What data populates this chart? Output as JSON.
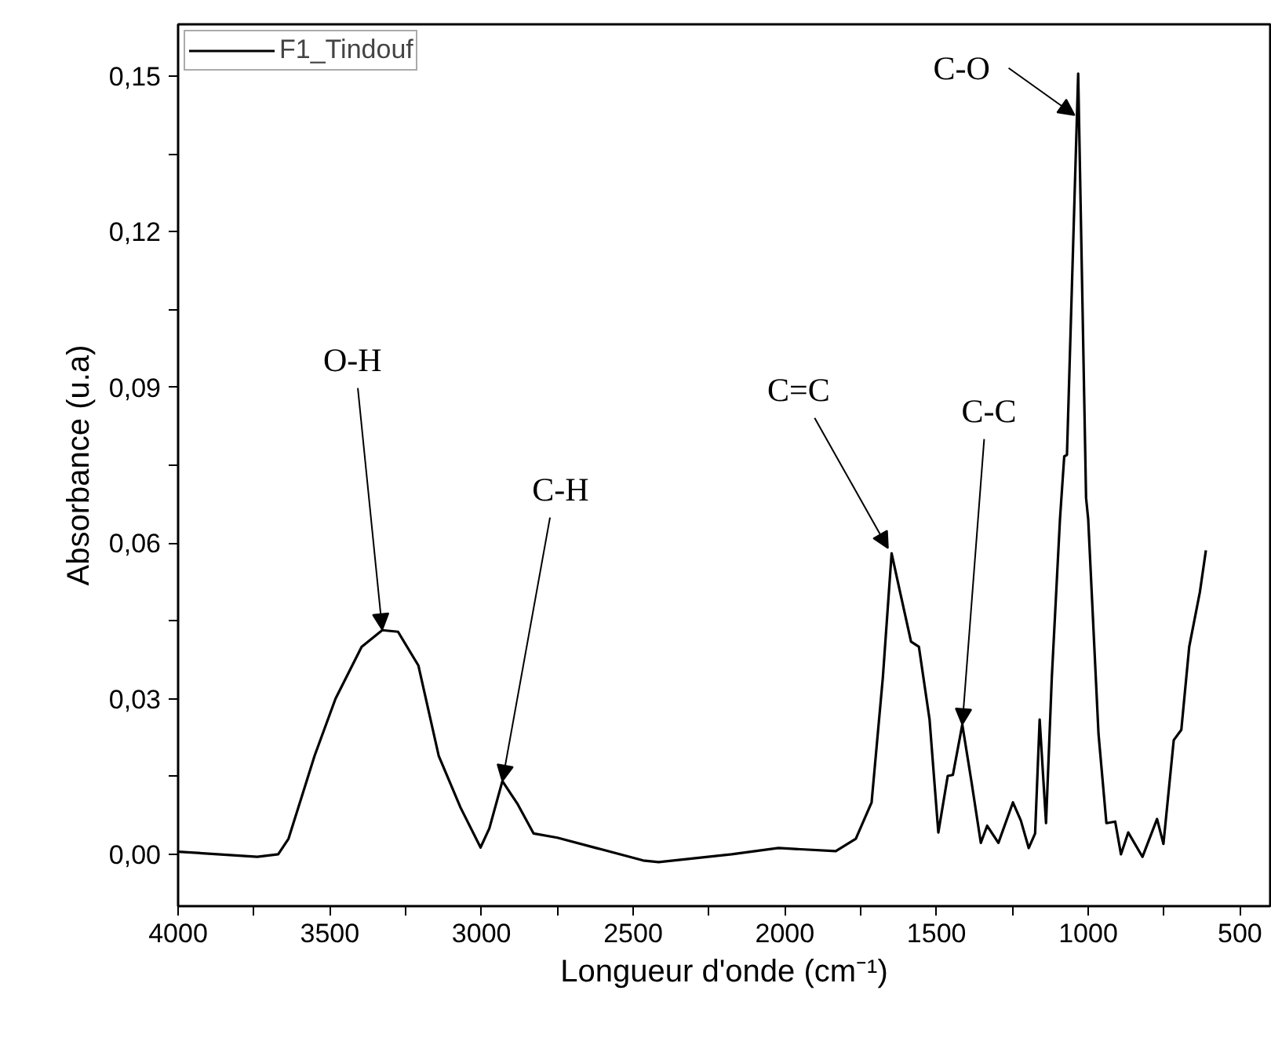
{
  "chart_data": {
    "type": "line",
    "xlabel": "Longueur d'onde (cm⁻¹)",
    "ylabel": "Absorbance (u.a)",
    "xlim": [
      4000,
      400
    ],
    "ylim": [
      -0.01,
      0.16
    ],
    "xticks": [
      4000,
      {
        "value": 3750,
        "label": null
      },
      3500,
      {
        "value": 3250,
        "label": null
      },
      3000,
      {
        "value": 2750,
        "label": null
      },
      2500,
      {
        "value": 2250,
        "label": null
      },
      2000,
      {
        "value": 1750,
        "label": null
      },
      1500,
      {
        "value": 1250,
        "label": null
      },
      1000,
      {
        "value": 750,
        "label": null
      },
      500
    ],
    "yticks": [
      {
        "value": 0,
        "label": "0,00"
      },
      {
        "value": 0.015,
        "label": null
      },
      {
        "value": 0.03,
        "label": "0,03"
      },
      {
        "value": 0.045,
        "label": null
      },
      {
        "value": 0.06,
        "label": "0,06"
      },
      {
        "value": 0.075,
        "label": null
      },
      {
        "value": 0.09,
        "label": "0,09"
      },
      {
        "value": 0.105,
        "label": null
      },
      {
        "value": 0.12,
        "label": "0,12"
      },
      {
        "value": 0.135,
        "label": null
      },
      {
        "value": 0.15,
        "label": "0,15"
      }
    ],
    "grid": false,
    "legend": "top left",
    "marker": "none",
    "line_style": "solid",
    "series": [
      {
        "name": "F1_Tindouf",
        "color": "#000000",
        "x": [
          4000,
          3739,
          3670,
          3636,
          3550,
          3481,
          3395,
          3327,
          3275,
          3208,
          3141,
          3069,
          3003,
          2974,
          2931,
          2880,
          2828,
          2750,
          2467,
          2416,
          2175,
          2021,
          1832,
          1766,
          1714,
          1677,
          1648,
          1618,
          1584,
          1558,
          1523,
          1494,
          1463,
          1446,
          1415,
          1385,
          1354,
          1333,
          1296,
          1248,
          1222,
          1196,
          1175,
          1160,
          1139,
          1120,
          1093,
          1079,
          1070,
          1033,
          1007,
          1000,
          966,
          940,
          911,
          892,
          868,
          821,
          773,
          752,
          718,
          693,
          667,
          632,
          612
        ],
        "values": [
          0.0005,
          -0.0005,
          0.0,
          0.003,
          0.019,
          0.03,
          0.04,
          0.0432,
          0.0429,
          0.0364,
          0.019,
          0.009,
          0.0013,
          0.005,
          0.0141,
          0.0096,
          0.004,
          0.0032,
          -0.0012,
          -0.0015,
          0.0,
          0.0012,
          0.0006,
          0.003,
          0.01,
          0.034,
          0.058,
          0.05,
          0.041,
          0.04,
          0.026,
          0.0042,
          0.0151,
          0.0153,
          0.025,
          0.0141,
          0.0022,
          0.0055,
          0.0022,
          0.01,
          0.0065,
          0.0012,
          0.004,
          0.026,
          0.006,
          0.034,
          0.0646,
          0.0767,
          0.077,
          0.1505,
          0.0687,
          0.0646,
          0.0232,
          0.006,
          0.0063,
          0.0,
          0.0042,
          -0.0005,
          0.0068,
          0.002,
          0.022,
          0.024,
          0.04,
          0.0505,
          0.0586
        ]
      }
    ],
    "annotations": [
      {
        "text": "O-H",
        "x": 3327,
        "y": 0.0433
      },
      {
        "text": "C-H",
        "x": 2931,
        "y": 0.0141
      },
      {
        "text": "C=C",
        "x": 1660,
        "y": 0.059
      },
      {
        "text": "C-C",
        "x": 1415,
        "y": 0.025
      },
      {
        "text": "C-O",
        "x": 1045,
        "y": 0.1425
      }
    ]
  }
}
